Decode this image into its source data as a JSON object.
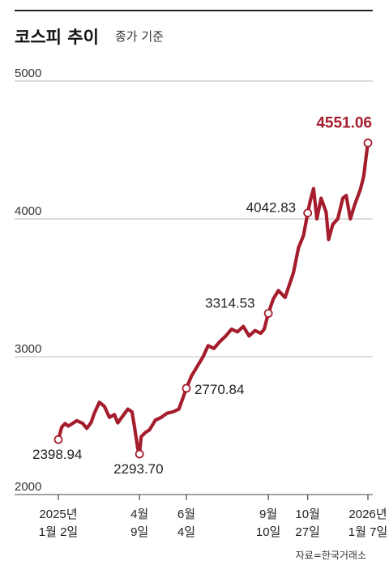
{
  "header": {
    "title": "코스피 추이",
    "subtitle": "종가 기준"
  },
  "source": "자료=한국거래소",
  "colors": {
    "line": "#a51d2d",
    "highlight": "#a51d2d",
    "grid": "#bbbbbb",
    "axis": "#444444"
  },
  "chart_data": {
    "type": "line",
    "title": "코스피 추이",
    "subtitle": "종가 기준",
    "ylim": [
      2000,
      5000
    ],
    "y_ticks": [
      2000,
      3000,
      4000,
      5000
    ],
    "y_tick_labels": [
      "2000",
      "3000",
      "4000",
      "5000"
    ],
    "x_ticks": [
      {
        "date": "2025-01-02",
        "lines": [
          "2025년",
          "1월 2일"
        ]
      },
      {
        "date": "2025-04-09",
        "lines": [
          "4월",
          "9일"
        ]
      },
      {
        "date": "2025-06-04",
        "lines": [
          "6월",
          "4일"
        ]
      },
      {
        "date": "2025-09-10",
        "lines": [
          "9월",
          "10일"
        ]
      },
      {
        "date": "2025-10-27",
        "lines": [
          "10월",
          "27일"
        ]
      },
      {
        "date": "2026-01-07",
        "lines": [
          "2026년",
          "1월 7일"
        ]
      }
    ],
    "x_range": [
      "2025-01-02",
      "2026-01-07"
    ],
    "series": [
      {
        "values": [
          [
            "2025-01-02",
            2398.94
          ],
          [
            "2025-01-06",
            2489
          ],
          [
            "2025-01-10",
            2515
          ],
          [
            "2025-01-14",
            2497
          ],
          [
            "2025-01-20",
            2520
          ],
          [
            "2025-01-24",
            2536
          ],
          [
            "2025-01-31",
            2517
          ],
          [
            "2025-02-05",
            2480
          ],
          [
            "2025-02-10",
            2521
          ],
          [
            "2025-02-14",
            2590
          ],
          [
            "2025-02-20",
            2670
          ],
          [
            "2025-02-26",
            2640
          ],
          [
            "2025-03-04",
            2560
          ],
          [
            "2025-03-10",
            2580
          ],
          [
            "2025-03-14",
            2520
          ],
          [
            "2025-03-20",
            2570
          ],
          [
            "2025-03-26",
            2620
          ],
          [
            "2025-03-31",
            2600
          ],
          [
            "2025-04-03",
            2490
          ],
          [
            "2025-04-07",
            2330
          ],
          [
            "2025-04-09",
            2293.7
          ],
          [
            "2025-04-11",
            2420
          ],
          [
            "2025-04-16",
            2450
          ],
          [
            "2025-04-21",
            2470
          ],
          [
            "2025-04-28",
            2540
          ],
          [
            "2025-05-05",
            2560
          ],
          [
            "2025-05-12",
            2590
          ],
          [
            "2025-05-19",
            2600
          ],
          [
            "2025-05-26",
            2620
          ],
          [
            "2025-06-04",
            2770.84
          ],
          [
            "2025-06-10",
            2860
          ],
          [
            "2025-06-17",
            2930
          ],
          [
            "2025-06-24",
            3000
          ],
          [
            "2025-06-30",
            3080
          ],
          [
            "2025-07-07",
            3060
          ],
          [
            "2025-07-14",
            3110
          ],
          [
            "2025-07-21",
            3150
          ],
          [
            "2025-07-28",
            3200
          ],
          [
            "2025-08-04",
            3180
          ],
          [
            "2025-08-11",
            3220
          ],
          [
            "2025-08-18",
            3150
          ],
          [
            "2025-08-25",
            3190
          ],
          [
            "2025-09-01",
            3170
          ],
          [
            "2025-09-05",
            3200
          ],
          [
            "2025-09-10",
            3314.53
          ],
          [
            "2025-09-16",
            3420
          ],
          [
            "2025-09-22",
            3480
          ],
          [
            "2025-09-30",
            3430
          ],
          [
            "2025-10-10",
            3610
          ],
          [
            "2025-10-16",
            3790
          ],
          [
            "2025-10-22",
            3880
          ],
          [
            "2025-10-27",
            4042.83
          ],
          [
            "2025-10-30",
            4130
          ],
          [
            "2025-11-03",
            4220
          ],
          [
            "2025-11-07",
            4000
          ],
          [
            "2025-11-12",
            4150
          ],
          [
            "2025-11-18",
            4050
          ],
          [
            "2025-11-21",
            3850
          ],
          [
            "2025-11-26",
            3960
          ],
          [
            "2025-12-02",
            4000
          ],
          [
            "2025-12-08",
            4150
          ],
          [
            "2025-12-12",
            4170
          ],
          [
            "2025-12-17",
            4000
          ],
          [
            "2025-12-22",
            4100
          ],
          [
            "2025-12-29",
            4214
          ],
          [
            "2026-01-02",
            4309
          ],
          [
            "2026-01-05",
            4457
          ],
          [
            "2026-01-07",
            4551.06
          ]
        ]
      }
    ],
    "annotations": [
      {
        "date": "2025-01-02",
        "value": 2398.94,
        "label": "2398.94",
        "highlight": false
      },
      {
        "date": "2025-04-09",
        "value": 2293.7,
        "label": "2293.70",
        "highlight": false
      },
      {
        "date": "2025-06-04",
        "value": 2770.84,
        "label": "2770.84",
        "highlight": false
      },
      {
        "date": "2025-09-10",
        "value": 3314.53,
        "label": "3314.53",
        "highlight": false
      },
      {
        "date": "2025-10-27",
        "value": 4042.83,
        "label": "4042.83",
        "highlight": false
      },
      {
        "date": "2026-01-07",
        "value": 4551.06,
        "label": "4551.06",
        "highlight": true
      }
    ]
  }
}
